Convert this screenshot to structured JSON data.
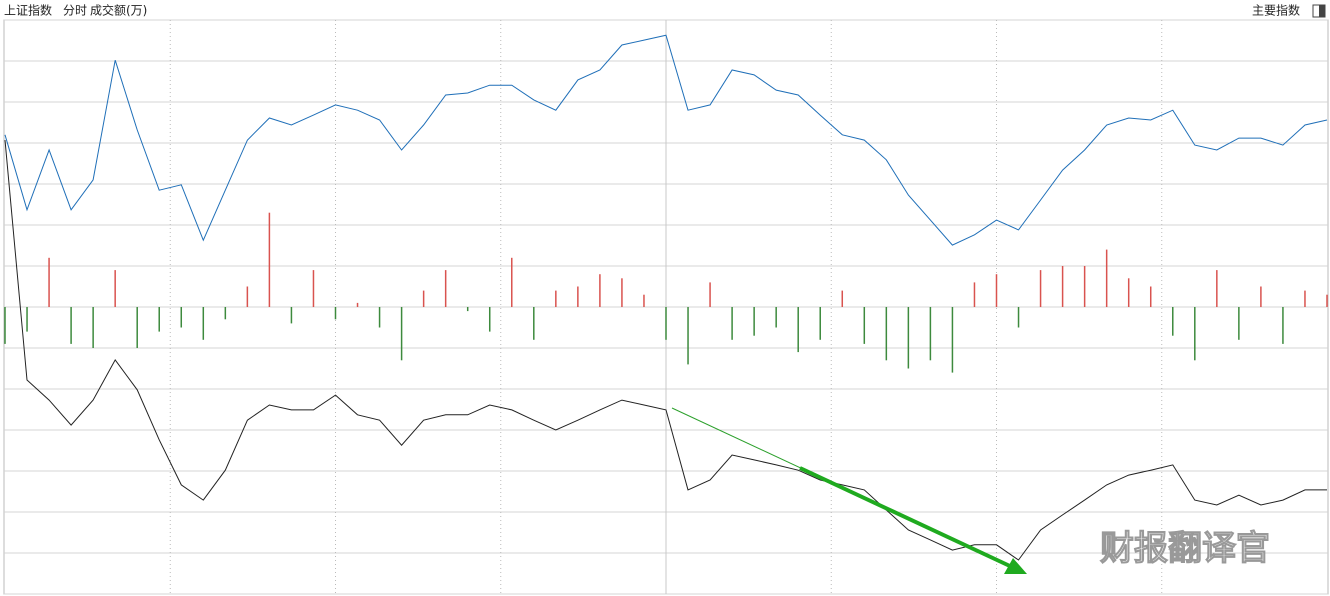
{
  "header": {
    "title": "上证指数",
    "mode": "分时",
    "indicator": "成交额(万)",
    "menu": "主要指数"
  },
  "watermark": "财报翻译官",
  "chart_data": {
    "type": "line",
    "x": [
      0,
      4,
      8,
      12,
      16,
      20,
      24,
      28,
      32,
      36,
      40,
      44,
      48,
      52,
      56,
      60,
      64,
      68,
      72,
      76,
      80,
      84,
      88,
      92,
      96,
      100,
      104,
      108,
      112,
      116,
      120,
      124,
      128,
      132,
      136,
      140,
      144,
      148,
      152,
      156,
      160,
      164,
      168,
      172,
      176,
      180,
      184,
      188,
      192,
      196,
      200,
      204,
      208,
      212,
      216,
      220,
      224,
      228,
      232,
      236,
      240
    ],
    "xlim": [
      0,
      240
    ],
    "ylim": [
      -7,
      7
    ],
    "xgrid": [
      30,
      60,
      90,
      120,
      150,
      180,
      210
    ],
    "ygrid": [
      -7,
      -6,
      -5,
      -4,
      -3,
      -2,
      -1,
      0,
      1,
      2,
      3,
      4,
      5,
      6,
      7
    ],
    "series": [
      {
        "color": "#1f6fb8",
        "values": [
          4.2,
          2.37,
          3.83,
          2.37,
          3.1,
          6.02,
          4.32,
          2.85,
          2.98,
          1.63,
          2.85,
          4.07,
          4.61,
          4.44,
          4.68,
          4.93,
          4.8,
          4.56,
          3.83,
          4.44,
          5.17,
          5.22,
          5.41,
          5.41,
          5.05,
          4.8,
          5.54,
          5.78,
          6.39,
          6.51,
          6.63,
          4.8,
          4.93,
          5.78,
          5.66,
          5.29,
          5.17,
          4.68,
          4.2,
          4.07,
          3.59,
          2.73,
          2.12,
          1.51,
          1.76,
          2.12,
          1.88,
          2.61,
          3.34,
          3.83,
          4.44,
          4.61,
          4.56,
          4.8,
          3.95,
          3.83,
          4.12,
          4.12,
          3.95,
          4.44,
          4.56
        ]
      },
      {
        "color": "#222222",
        "values": [
          4.07,
          -1.78,
          -2.27,
          -2.88,
          -2.27,
          -1.29,
          -2.02,
          -3.24,
          -4.34,
          -4.71,
          -3.98,
          -2.76,
          -2.39,
          -2.51,
          -2.51,
          -2.15,
          -2.63,
          -2.76,
          -3.37,
          -2.76,
          -2.63,
          -2.63,
          -2.39,
          -2.51,
          -2.76,
          -3.0,
          -2.76,
          -2.51,
          -2.27,
          -2.39,
          -2.51,
          -4.46,
          -4.22,
          -3.61,
          -3.73,
          -3.85,
          -3.98,
          -4.22,
          -4.34,
          -4.46,
          -4.95,
          -5.44,
          -5.68,
          -5.93,
          -5.8,
          -5.8,
          -6.17,
          -5.44,
          -5.07,
          -4.71,
          -4.34,
          -4.1,
          -3.98,
          -3.85,
          -4.71,
          -4.83,
          -4.59,
          -4.83,
          -4.71,
          -4.46,
          -4.46
        ]
      }
    ],
    "bars": {
      "up_color": "#d9534f",
      "down_color": "#3d8a3d",
      "values": [
        -0.9,
        -0.6,
        1.2,
        -0.9,
        -1.0,
        0.9,
        -1.0,
        -0.6,
        -0.5,
        -0.8,
        -0.3,
        0.5,
        2.3,
        -0.4,
        0.9,
        -0.3,
        0.1,
        -0.5,
        -1.3,
        0.4,
        0.9,
        -0.1,
        -0.6,
        1.2,
        -0.8,
        0.4,
        0.5,
        0.8,
        0.7,
        0.3,
        -0.8,
        -1.4,
        0.6,
        -0.8,
        -0.7,
        -0.5,
        -1.1,
        -0.8,
        0.4,
        -0.9,
        -1.3,
        -1.5,
        -1.3,
        -1.6,
        0.6,
        0.8,
        -0.5,
        0.9,
        1.0,
        1.0,
        1.4,
        0.7,
        0.5,
        -0.7,
        -1.3,
        0.9,
        -0.8,
        0.5,
        -0.9,
        0.4,
        0.3
      ]
    }
  }
}
